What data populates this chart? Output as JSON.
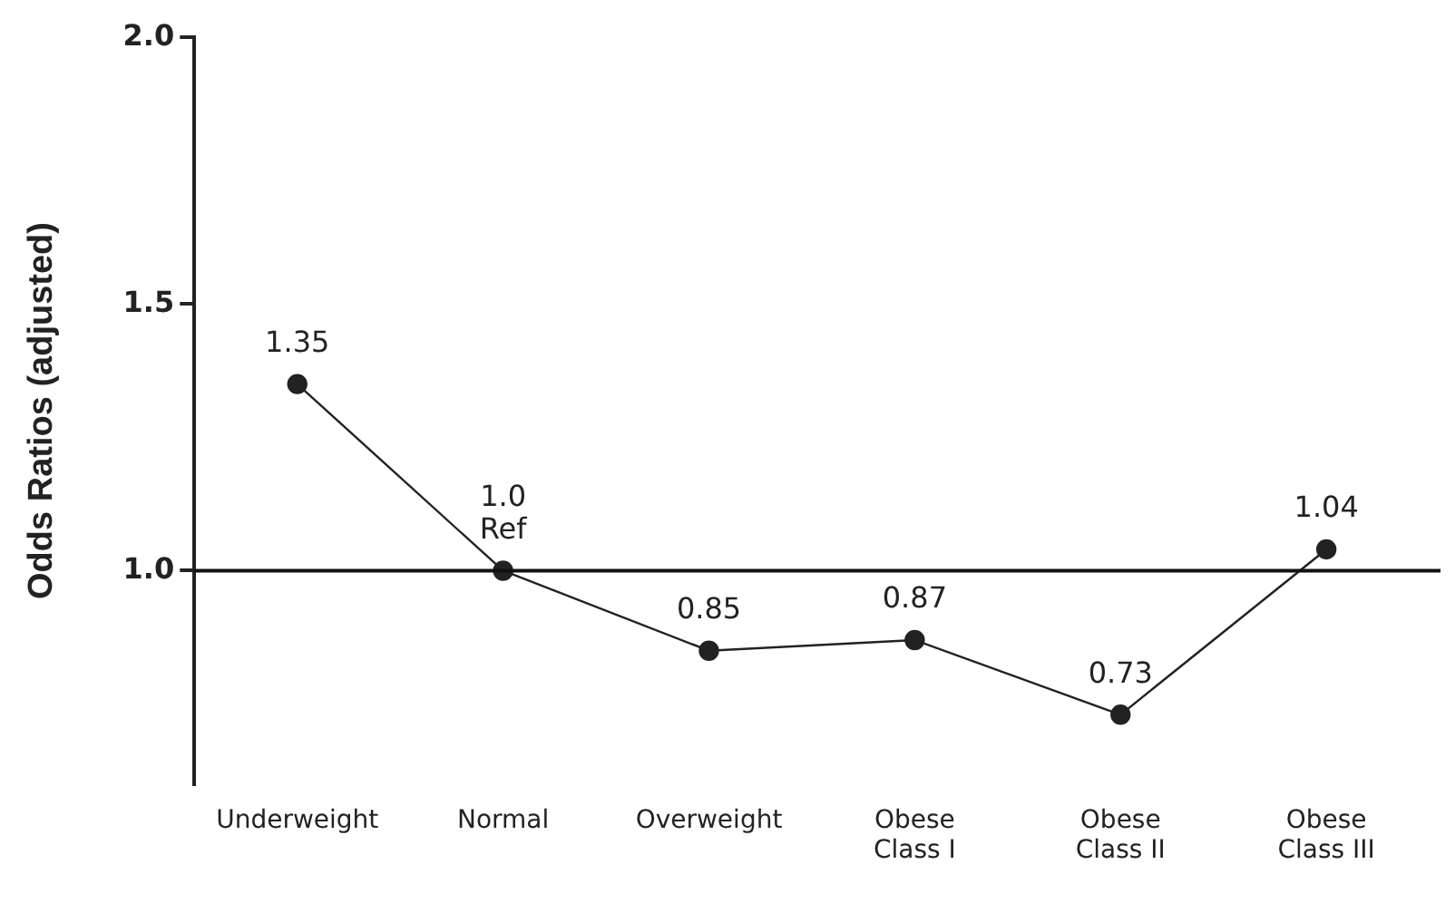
{
  "chart_data": {
    "type": "line",
    "ylabel": "Odds Ratios (adjusted)",
    "categories": [
      "Underweight",
      "Normal",
      "Overweight",
      "Obese\nClass I",
      "Obese\nClass II",
      "Obese\nClass III"
    ],
    "values": [
      1.35,
      1.0,
      0.85,
      0.87,
      0.73,
      1.04
    ],
    "value_labels": [
      "1.35",
      "1.0\nRef",
      "0.85",
      "0.87",
      "0.73",
      "1.04"
    ],
    "color": "#222222",
    "marker": "circle",
    "line_style": "solid",
    "ylim": [
      0.6,
      2.0
    ],
    "yticks": [
      {
        "value": 1.0,
        "label": "1.0"
      },
      {
        "value": 1.5,
        "label": "1.5"
      },
      {
        "value": 2.0,
        "label": "2.0"
      }
    ],
    "ref_lines": [
      {
        "axis": "y",
        "value": 1.0,
        "color": "#111111"
      }
    ]
  }
}
